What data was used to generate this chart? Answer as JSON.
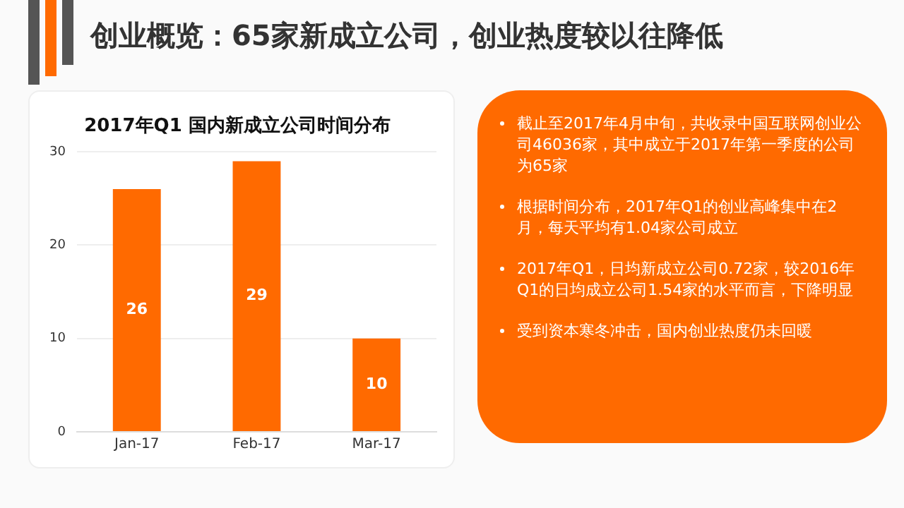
{
  "chart_data": {
    "type": "bar",
    "title": "创业概览：65家新成立公司，创业热度较以往降低",
    "subtitle": "2017年Q1 国内新成立公司时间分布",
    "categories": [
      "Jan-17",
      "Feb-17",
      "Mar-17"
    ],
    "values": [
      26,
      29,
      10
    ],
    "color": "#ff6a00",
    "ylim": [
      0,
      30
    ],
    "yticks": [
      0,
      10,
      20,
      30
    ],
    "grid": "y",
    "data_labels": true,
    "legend": false,
    "annotations": [
      "截止至2017年4月中旬，共收录中国互联网创业公司46036家，其中成立于2017年第一季度的公司为65家",
      "根据时间分布，2017年Q1的创业高峰集中在2月，每天平均有1.04家公司成立",
      "2017年Q1，日均新成立公司0.72家，较2016年Q1的日均成立公司1.54家的水平而言，下降明显",
      "受到资本寒冬冲击，国内创业热度仍未回暖"
    ]
  }
}
